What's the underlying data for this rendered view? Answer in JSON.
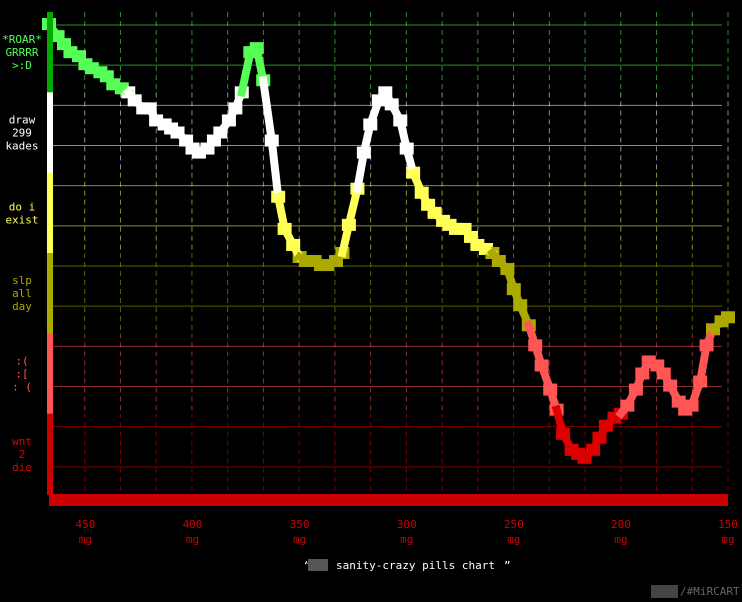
{
  "chart_data": {
    "type": "line",
    "title": "sanity-crazy pills chart",
    "title_prefix": "“",
    "title_suffix": "”",
    "watermark": "/#MiRCART",
    "grid": true,
    "x_unit": "mg",
    "xlim": [
      467,
      150
    ],
    "x_ticks": [
      450,
      400,
      350,
      300,
      250,
      200,
      150
    ],
    "y_bands": [
      {
        "label_lines": [
          "*ROAR*",
          "GRRRR",
          ">:D"
        ],
        "color": "#55ff55",
        "axis_color": "#00aa00"
      },
      {
        "label_lines": [
          "draw",
          "299",
          "kades"
        ],
        "color": "#ffffff",
        "axis_color": "#ffffff"
      },
      {
        "label_lines": [
          "do i",
          "exist"
        ],
        "color": "#ffff55",
        "axis_color": "#ffff55"
      },
      {
        "label_lines": [
          "slp",
          "all",
          "day"
        ],
        "color": "#aaaa00",
        "axis_color": "#aaaa00"
      },
      {
        "label_lines": [
          ":(",
          ":[",
          ": ("
        ],
        "color": "#ff5555",
        "axis_color": "#ff5555"
      },
      {
        "label_lines": [
          "wnt",
          "2",
          "die"
        ],
        "color": "#dd0000",
        "axis_color": "#cc0000"
      }
    ],
    "ylim": [
      0,
      6
    ],
    "series": [
      {
        "x": [
          467,
          463,
          460,
          457,
          453,
          450,
          447,
          443,
          440,
          437,
          433,
          430,
          427,
          423,
          420,
          417,
          413,
          410,
          407,
          403,
          400,
          397,
          393,
          390,
          387,
          383,
          380,
          377,
          373,
          370,
          367,
          363,
          360,
          357,
          353,
          350,
          347,
          343,
          340,
          337,
          333,
          330,
          327,
          323,
          320,
          317,
          313,
          310,
          307,
          303,
          300,
          297,
          293,
          290,
          287,
          283,
          280,
          277,
          273,
          270,
          267,
          263,
          260,
          257,
          253,
          250,
          247,
          243,
          240,
          237,
          233,
          230,
          227,
          223,
          220,
          217,
          213,
          210,
          207,
          203,
          200,
          197,
          193,
          190,
          187,
          183,
          180,
          177,
          173,
          170,
          167,
          163,
          160,
          157,
          153,
          150
        ],
        "y": [
          5.85,
          5.7,
          5.6,
          5.5,
          5.45,
          5.35,
          5.3,
          5.25,
          5.2,
          5.1,
          5.05,
          5.0,
          4.9,
          4.8,
          4.8,
          4.65,
          4.6,
          4.55,
          4.5,
          4.4,
          4.3,
          4.25,
          4.3,
          4.4,
          4.5,
          4.65,
          4.8,
          5.0,
          5.5,
          5.55,
          5.15,
          4.4,
          3.7,
          3.3,
          3.1,
          2.95,
          2.9,
          2.9,
          2.85,
          2.85,
          2.9,
          3.0,
          3.35,
          3.8,
          4.25,
          4.6,
          4.9,
          5.0,
          4.85,
          4.65,
          4.3,
          4.0,
          3.75,
          3.6,
          3.5,
          3.4,
          3.35,
          3.3,
          3.3,
          3.2,
          3.1,
          3.05,
          3.0,
          2.9,
          2.8,
          2.55,
          2.35,
          2.1,
          1.85,
          1.6,
          1.3,
          1.05,
          0.75,
          0.55,
          0.5,
          0.45,
          0.55,
          0.7,
          0.85,
          0.95,
          1.0,
          1.1,
          1.3,
          1.5,
          1.65,
          1.6,
          1.5,
          1.35,
          1.15,
          1.05,
          1.1,
          1.4,
          1.85,
          2.05,
          2.15,
          2.2
        ]
      }
    ]
  }
}
